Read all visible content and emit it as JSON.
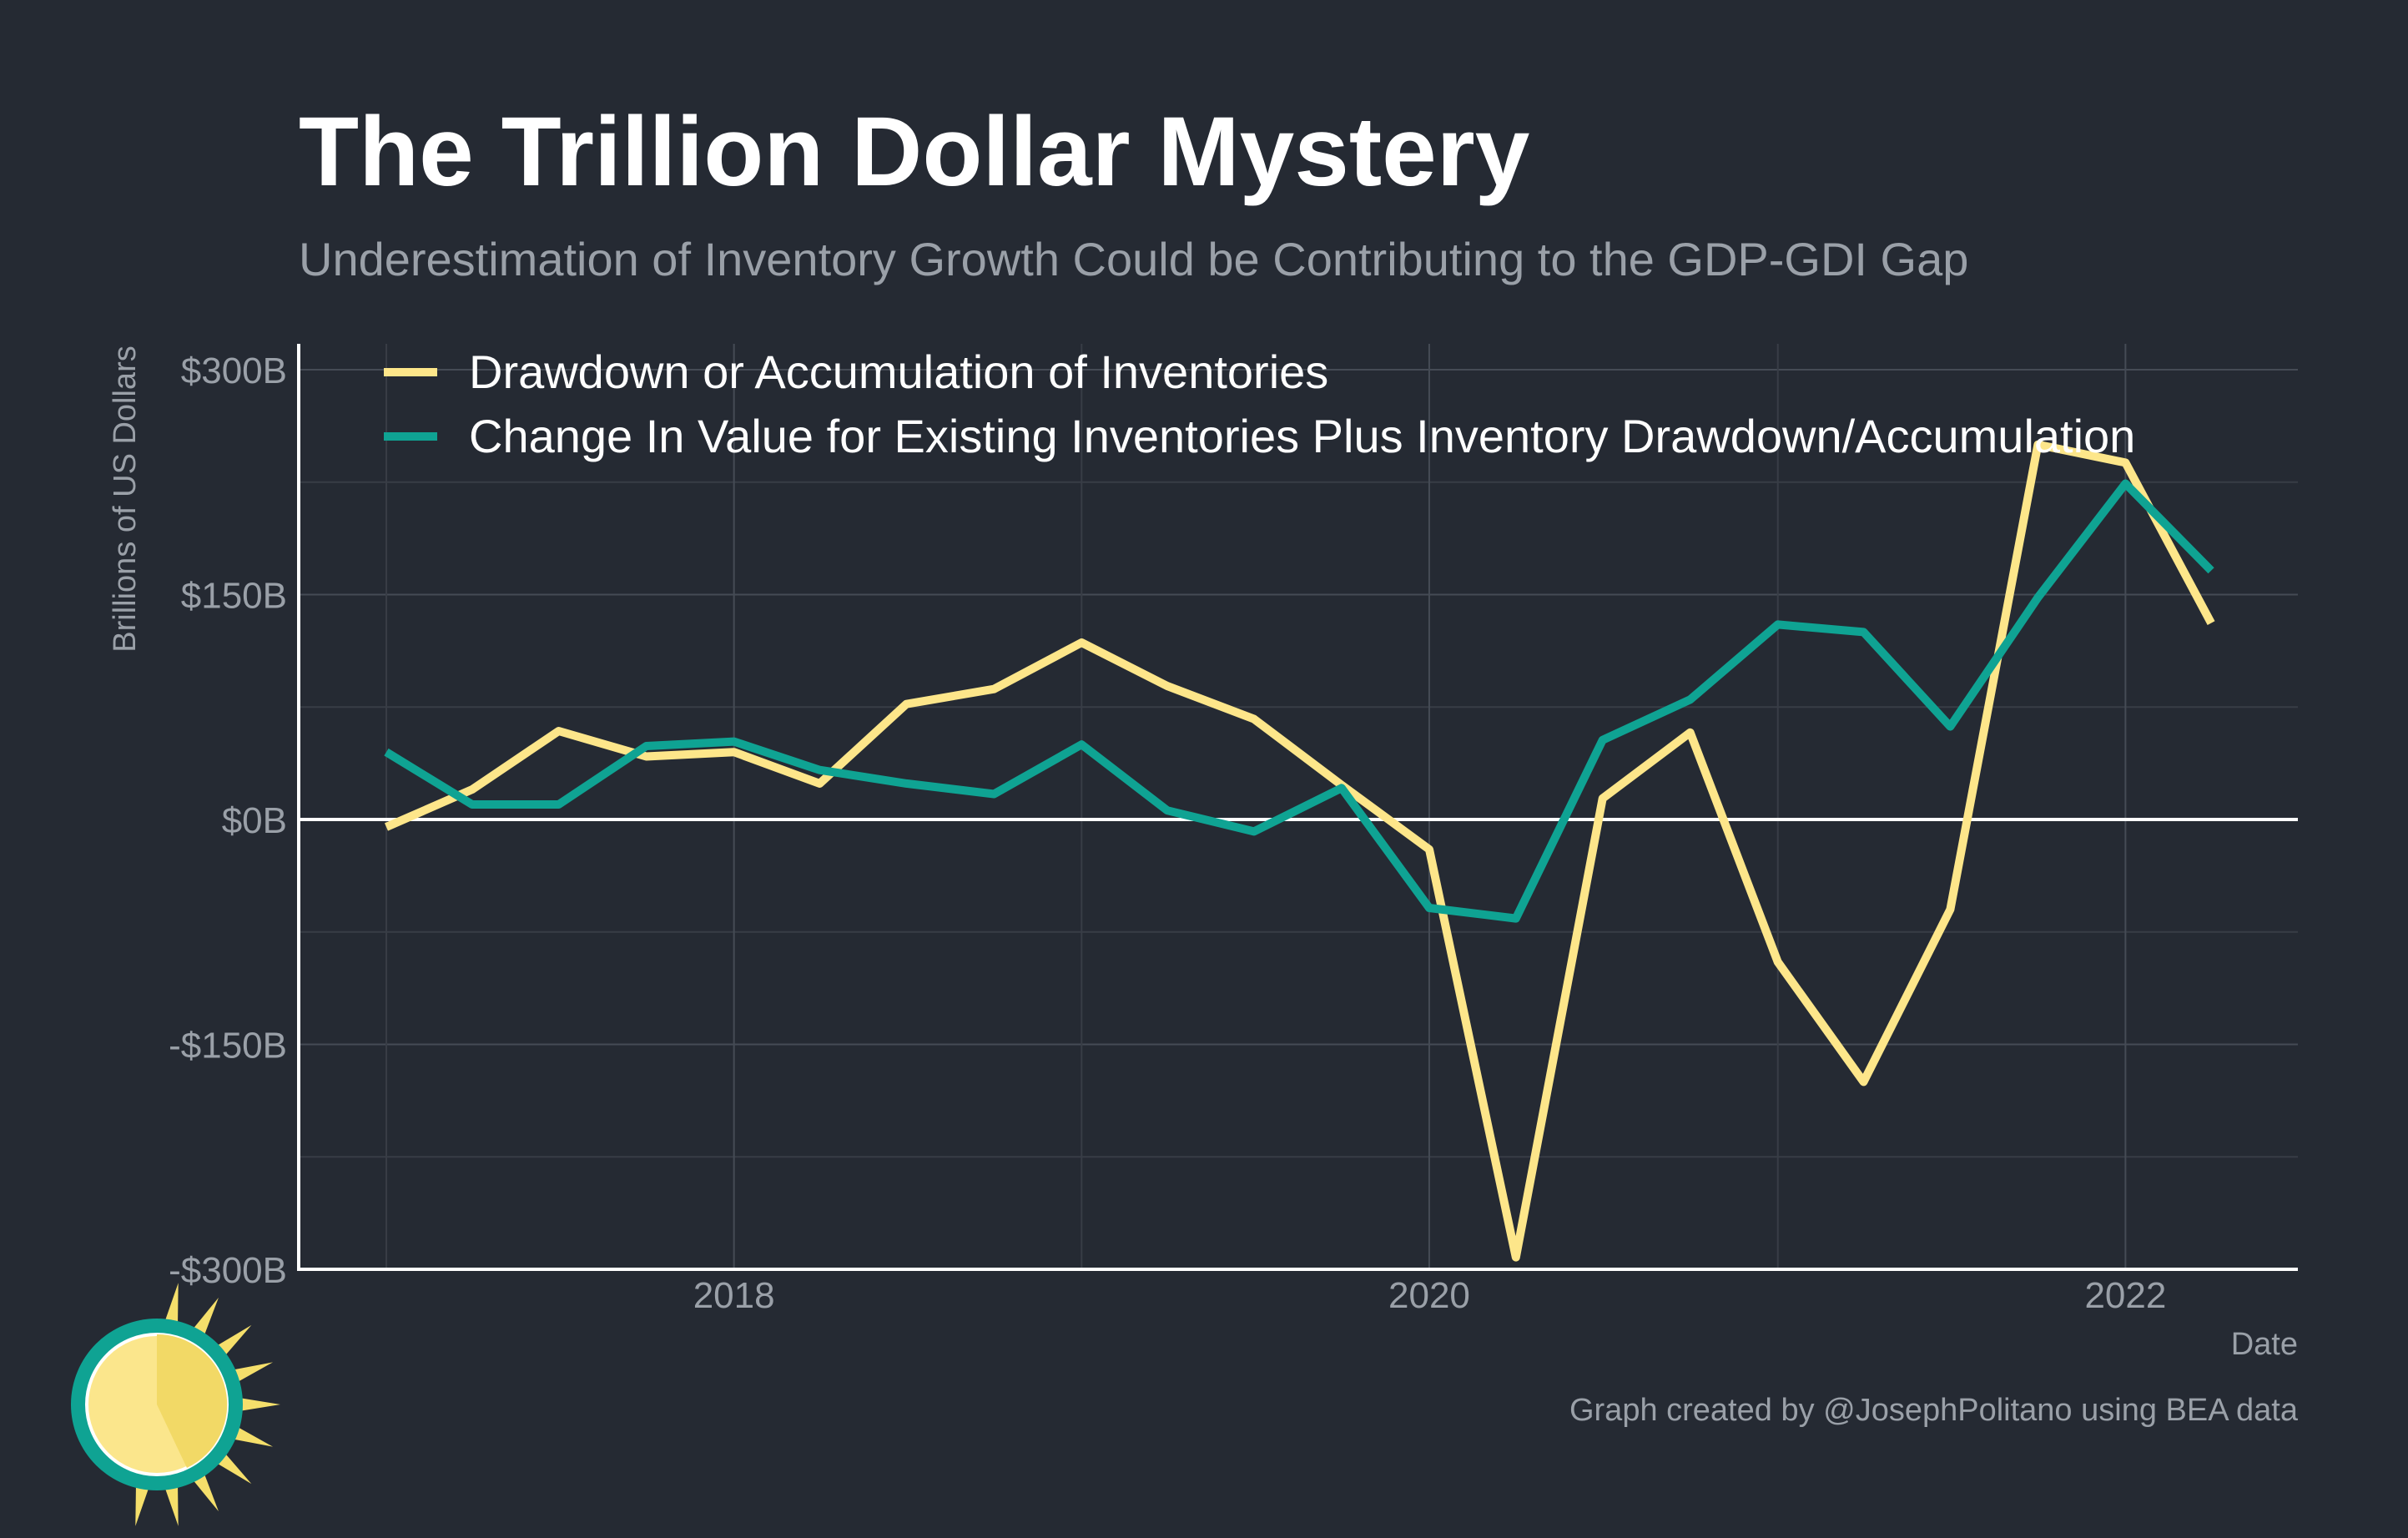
{
  "chart_data": {
    "type": "line",
    "title": "The Trillion Dollar Mystery",
    "subtitle": "Underestimation of Inventory Growth Could be Contributing to the GDP-GDI Gap",
    "xlabel": "Date",
    "ylabel": "Brillions of US Dollars",
    "caption": "Graph created by @JosephPolitano using BEA data",
    "ylim": [
      -300,
      300
    ],
    "xlim": [
      "2016-10-01",
      "2022-07-01"
    ],
    "y_ticks": [
      -300,
      -150,
      0,
      150,
      300
    ],
    "y_tick_labels": [
      "-$300B",
      "-$150B",
      "$0B",
      "$150B",
      "$300B"
    ],
    "x_ticks": [
      "2018-01-01",
      "2020-01-01",
      "2022-01-01"
    ],
    "x_tick_labels": [
      "2018",
      "2020",
      "2022"
    ],
    "grid": true,
    "legend_position": "top-left",
    "x": [
      "2017-01-01",
      "2017-04-01",
      "2017-07-01",
      "2017-10-01",
      "2018-01-01",
      "2018-04-01",
      "2018-07-01",
      "2018-10-01",
      "2019-01-01",
      "2019-04-01",
      "2019-07-01",
      "2019-10-01",
      "2020-01-01",
      "2020-04-01",
      "2020-07-01",
      "2020-10-01",
      "2021-01-01",
      "2021-04-01",
      "2021-07-01",
      "2021-10-01",
      "2022-01-01",
      "2022-04-01"
    ],
    "series": [
      {
        "name": "Drawdown or Accumulation of Inventories",
        "color": "#fde68a",
        "values": [
          -5,
          20,
          59,
          42,
          45,
          24,
          77,
          87,
          118,
          89,
          67,
          23,
          -20,
          -292,
          14,
          58,
          -95,
          -175,
          -60,
          250,
          238,
          131
        ]
      },
      {
        "name": "Change In Value for Existing Inventories Plus Inventory Drawdown/Accumulation",
        "color": "#0fa393",
        "values": [
          45,
          10,
          10,
          49,
          52,
          33,
          24,
          17,
          50,
          6,
          -8,
          21,
          -59,
          -66,
          53,
          80,
          130,
          125,
          62,
          148,
          224,
          166
        ]
      }
    ]
  },
  "logo": {
    "name": "sun-logo",
    "ring_color": "#0fa393",
    "sun_color": "#f5df6b",
    "ray_color": "#f5df6b"
  }
}
